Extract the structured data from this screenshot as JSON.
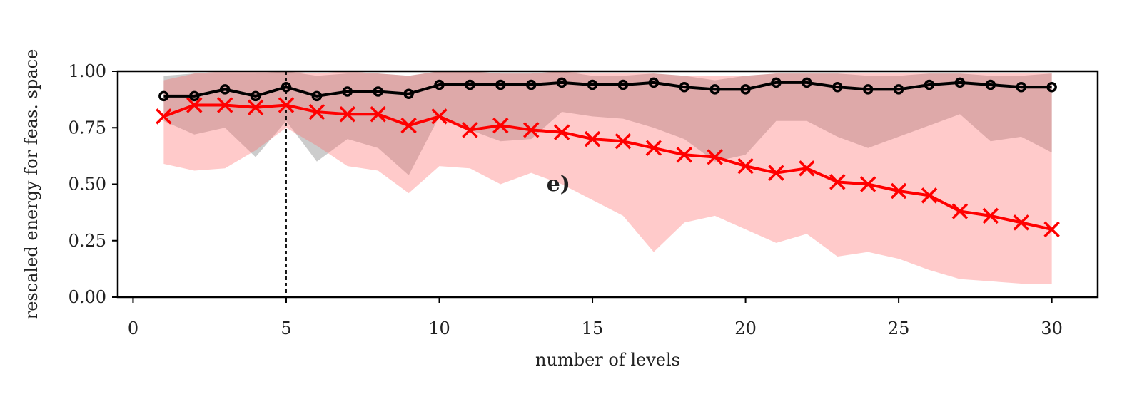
{
  "chart_data": {
    "type": "line",
    "panel_label": "e)",
    "xlabel": "number of levels",
    "ylabel": "rescaled energy for feas. space",
    "xlim": [
      -0.5,
      31.5
    ],
    "ylim": [
      0.0,
      1.0
    ],
    "xticks": [
      0,
      5,
      10,
      15,
      20,
      25,
      30
    ],
    "xtick_labels": [
      "0",
      "5",
      "10",
      "15",
      "20",
      "25",
      "30"
    ],
    "yticks": [
      0.0,
      0.25,
      0.5,
      0.75,
      1.0
    ],
    "ytick_labels": [
      "0.00",
      "0.25",
      "0.50",
      "0.75",
      "1.00"
    ],
    "vline_x": 5,
    "x": [
      1,
      2,
      3,
      4,
      5,
      6,
      7,
      8,
      9,
      10,
      11,
      12,
      13,
      14,
      15,
      16,
      17,
      18,
      19,
      20,
      21,
      22,
      23,
      24,
      25,
      26,
      27,
      28,
      29,
      30
    ],
    "series": [
      {
        "name": "black",
        "color": "#000000",
        "marker": "circle",
        "values": [
          0.89,
          0.89,
          0.92,
          0.89,
          0.93,
          0.89,
          0.91,
          0.91,
          0.9,
          0.94,
          0.94,
          0.94,
          0.94,
          0.95,
          0.94,
          0.94,
          0.95,
          0.93,
          0.92,
          0.92,
          0.95,
          0.95,
          0.93,
          0.92,
          0.92,
          0.94,
          0.95,
          0.94,
          0.93,
          0.93
        ],
        "band_color": "#999999",
        "band_lower": [
          0.78,
          0.72,
          0.75,
          0.62,
          0.78,
          0.6,
          0.7,
          0.66,
          0.54,
          0.8,
          0.74,
          0.69,
          0.7,
          0.82,
          0.8,
          0.79,
          0.75,
          0.7,
          0.6,
          0.63,
          0.78,
          0.78,
          0.71,
          0.66,
          0.71,
          0.76,
          0.81,
          0.69,
          0.71,
          0.64
        ],
        "band_upper": [
          0.98,
          0.99,
          0.99,
          0.99,
          1.0,
          0.98,
          0.99,
          0.99,
          0.98,
          1.0,
          1.0,
          0.99,
          0.99,
          1.0,
          0.98,
          0.98,
          0.99,
          0.98,
          0.96,
          0.98,
          0.99,
          0.99,
          0.99,
          0.98,
          0.98,
          0.99,
          0.99,
          0.98,
          0.98,
          0.99
        ]
      },
      {
        "name": "red",
        "color": "#ff0000",
        "marker": "x",
        "values": [
          0.8,
          0.85,
          0.85,
          0.84,
          0.85,
          0.82,
          0.81,
          0.81,
          0.76,
          0.8,
          0.74,
          0.76,
          0.74,
          0.73,
          0.7,
          0.69,
          0.66,
          0.63,
          0.62,
          0.58,
          0.55,
          0.57,
          0.51,
          0.5,
          0.47,
          0.45,
          0.38,
          0.36,
          0.33,
          0.3
        ],
        "band_color": "#ff6666",
        "band_lower": [
          0.59,
          0.56,
          0.57,
          0.65,
          0.75,
          0.67,
          0.58,
          0.56,
          0.46,
          0.58,
          0.57,
          0.5,
          0.55,
          0.5,
          0.43,
          0.36,
          0.2,
          0.33,
          0.36,
          0.3,
          0.24,
          0.28,
          0.18,
          0.2,
          0.17,
          0.12,
          0.08,
          0.07,
          0.06,
          0.06
        ],
        "band_upper": [
          0.96,
          0.99,
          1.0,
          1.0,
          1.0,
          0.99,
          1.0,
          0.99,
          0.98,
          1.0,
          1.0,
          0.99,
          0.99,
          1.0,
          0.99,
          0.99,
          0.99,
          0.98,
          0.98,
          0.98,
          0.99,
          0.99,
          0.99,
          0.99,
          0.99,
          0.99,
          0.99,
          0.99,
          0.99,
          0.99
        ]
      }
    ]
  }
}
